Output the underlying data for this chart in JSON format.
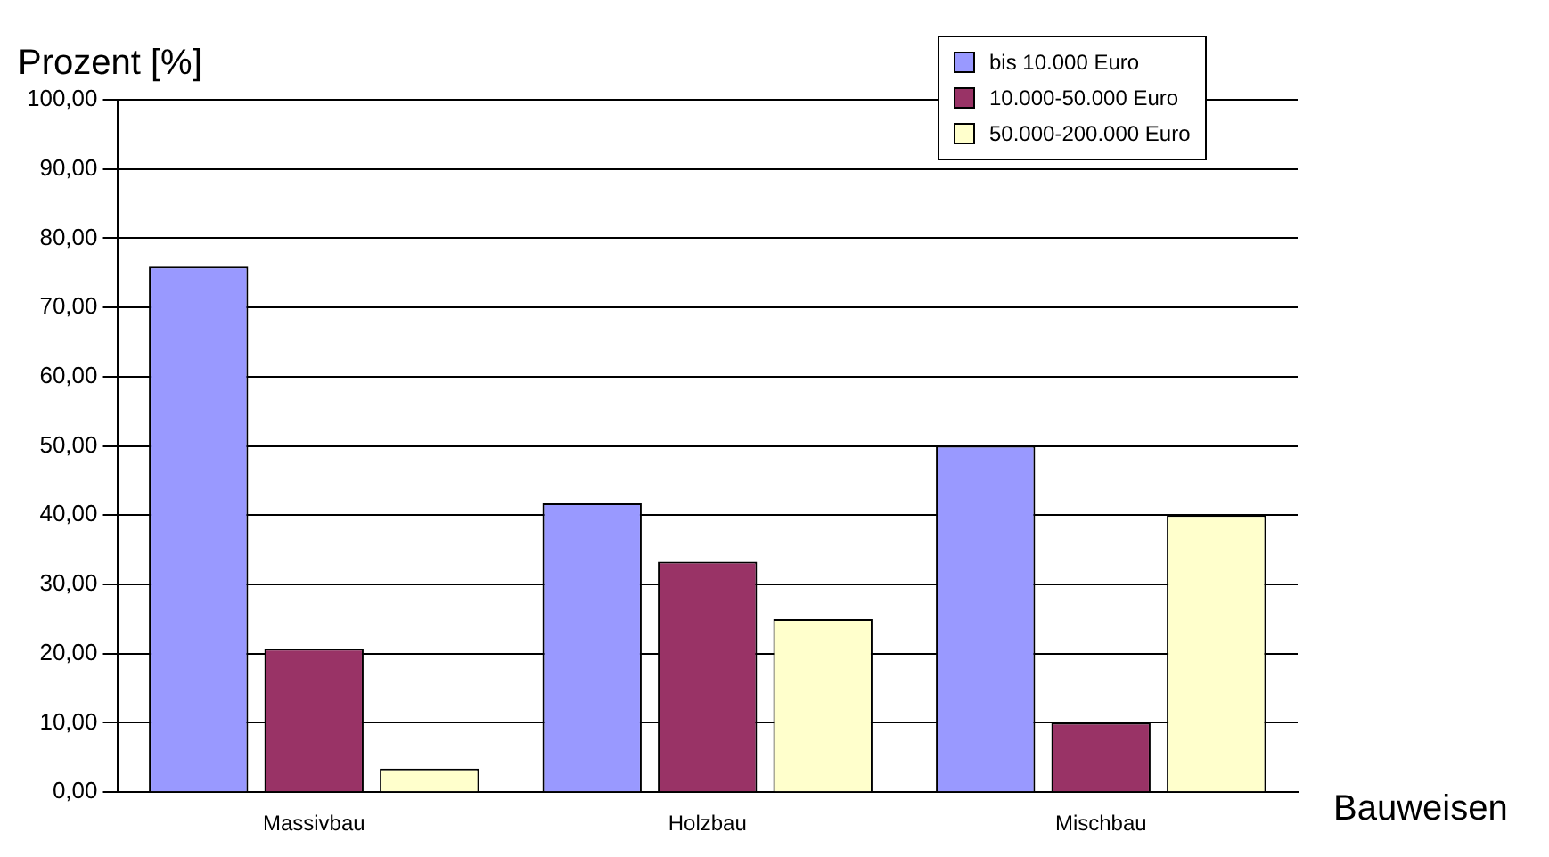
{
  "chart_data": {
    "type": "bar",
    "ylabel": "Prozent [%]",
    "xlabel": "Bauweisen",
    "categories": [
      "Massivbau",
      "Holzbau",
      "Mischbau"
    ],
    "series": [
      {
        "name": "bis 10.000 Euro",
        "color": "#9999ff",
        "values": [
          75.9,
          41.7,
          50.0
        ]
      },
      {
        "name": "10.000-50.000 Euro",
        "color": "#993366",
        "values": [
          20.7,
          33.3,
          10.0
        ]
      },
      {
        "name": "50.000-200.000 Euro",
        "color": "#ffffcc",
        "values": [
          3.4,
          25.0,
          40.0
        ]
      }
    ],
    "ylim": [
      0,
      100
    ],
    "yticks": [
      {
        "value": 0,
        "label": "0,00"
      },
      {
        "value": 10,
        "label": "10,00"
      },
      {
        "value": 20,
        "label": "20,00"
      },
      {
        "value": 30,
        "label": "30,00"
      },
      {
        "value": 40,
        "label": "40,00"
      },
      {
        "value": 50,
        "label": "50,00"
      },
      {
        "value": 60,
        "label": "60,00"
      },
      {
        "value": 70,
        "label": "70,00"
      },
      {
        "value": 80,
        "label": "80,00"
      },
      {
        "value": 90,
        "label": "90,00"
      },
      {
        "value": 100,
        "label": "100,00"
      }
    ],
    "grid": "y",
    "legend": "top right"
  }
}
